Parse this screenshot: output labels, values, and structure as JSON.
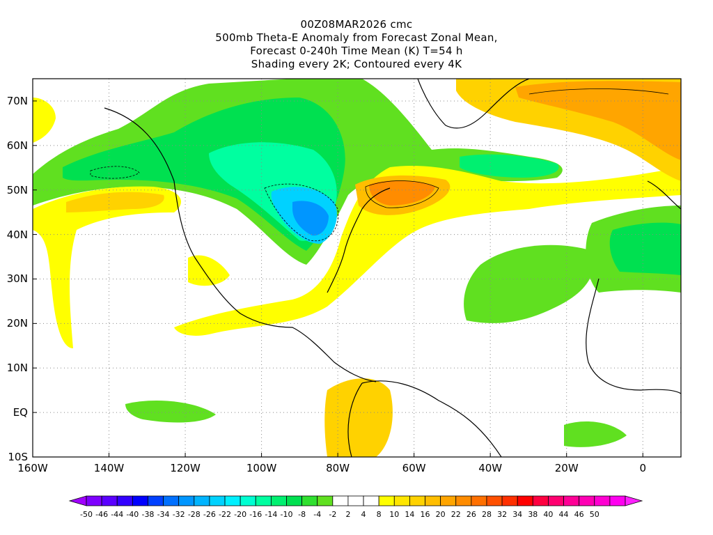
{
  "title": {
    "line1": "00Z08MAR2026 cmc",
    "line2": "500mb Theta-E Anomaly from Forecast Zonal Mean,",
    "line3": "Forecast 0-240h Time Mean (K) T=54 h",
    "line4": "Shading every 2K; Contoured every 4K"
  },
  "map": {
    "lon_min": -160,
    "lon_max": 10,
    "lat_min": -10,
    "lat_max": 75,
    "lat_ticks": [
      {
        "value": 70,
        "label": "70N"
      },
      {
        "value": 60,
        "label": "60N"
      },
      {
        "value": 50,
        "label": "50N"
      },
      {
        "value": 40,
        "label": "40N"
      },
      {
        "value": 30,
        "label": "30N"
      },
      {
        "value": 20,
        "label": "20N"
      },
      {
        "value": 10,
        "label": "10N"
      },
      {
        "value": 0,
        "label": "EQ"
      },
      {
        "value": -10,
        "label": "10S"
      }
    ],
    "lon_ticks": [
      {
        "value": -160,
        "label": "160W"
      },
      {
        "value": -140,
        "label": "140W"
      },
      {
        "value": -120,
        "label": "120W"
      },
      {
        "value": -100,
        "label": "100W"
      },
      {
        "value": -80,
        "label": "80W"
      },
      {
        "value": -60,
        "label": "60W"
      },
      {
        "value": -40,
        "label": "40W"
      },
      {
        "value": -20,
        "label": "20W"
      },
      {
        "value": 0,
        "label": "0"
      }
    ],
    "grid": "dotted"
  },
  "colorbar": {
    "colors": [
      "#a000ff",
      "#7e00ff",
      "#5a00ff",
      "#3300ff",
      "#0000ff",
      "#0040ff",
      "#0070ff",
      "#0096ff",
      "#00b4ff",
      "#00d2ff",
      "#00f0ff",
      "#00ffd2",
      "#00ffa0",
      "#00f070",
      "#00e050",
      "#30e030",
      "#60e020",
      "#ffffff",
      "#ffffff",
      "#ffffff",
      "#ffff00",
      "#ffe600",
      "#ffd200",
      "#ffbe00",
      "#ffa500",
      "#ff8c00",
      "#ff7000",
      "#ff5000",
      "#ff3000",
      "#ff0000",
      "#ff0040",
      "#ff0070",
      "#ff0096",
      "#ff00b4",
      "#ff00d2",
      "#ff00f0",
      "#ff20ff"
    ],
    "labels": [
      "-50",
      "-46",
      "-44",
      "-40",
      "-38",
      "-34",
      "-32",
      "-28",
      "-26",
      "-22",
      "-20",
      "-16",
      "-14",
      "-10",
      "-8",
      "-4",
      "-2",
      "2",
      "4",
      "8",
      "10",
      "14",
      "16",
      "20",
      "22",
      "26",
      "28",
      "32",
      "34",
      "38",
      "40",
      "44",
      "46",
      "50"
    ]
  }
}
